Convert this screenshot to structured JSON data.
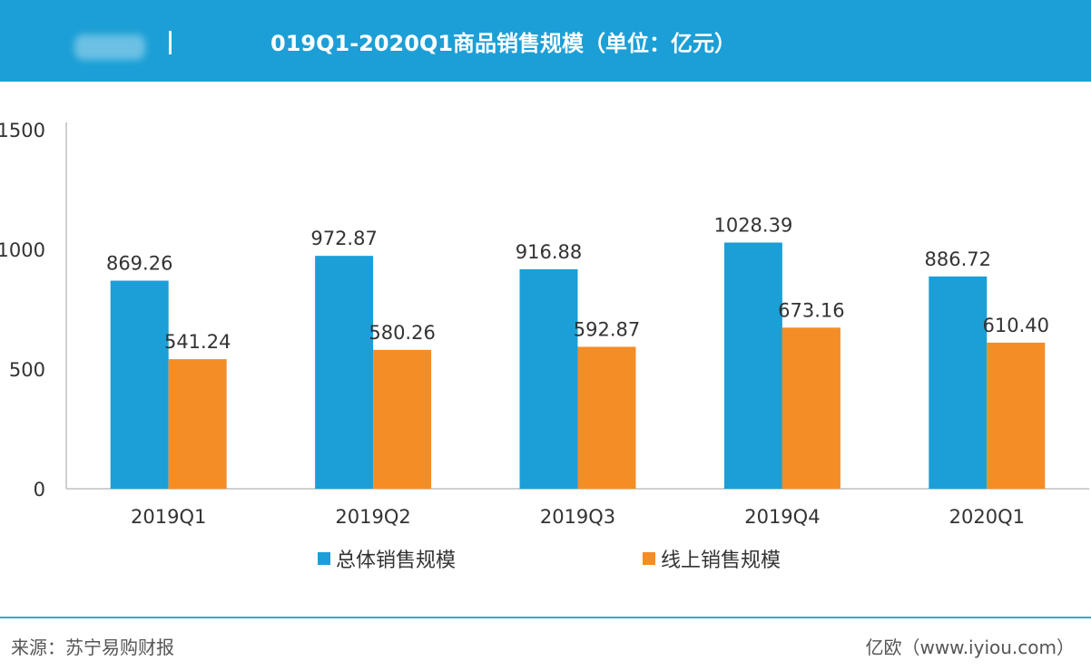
{
  "header": {
    "title": "019Q1-2020Q1商品销售规模（单位：亿元）",
    "bg_color": "#1c9fd6"
  },
  "footer": {
    "source": "来源：苏宁易购财报",
    "brand": "亿欧（www.iyiou.com）"
  },
  "chart_data": {
    "type": "bar",
    "categories": [
      "2019Q1",
      "2019Q2",
      "2019Q3",
      "2019Q4",
      "2020Q1"
    ],
    "series": [
      {
        "name": "总体销售规模",
        "color": "#1c9fd6",
        "values": [
          869.26,
          972.87,
          916.88,
          1028.39,
          886.72
        ],
        "labels": [
          "869.26",
          "972.87",
          "916.88",
          "1028.39",
          "886.72"
        ]
      },
      {
        "name": "线上销售规模",
        "color": "#f48d26",
        "values": [
          541.24,
          580.26,
          592.87,
          673.16,
          610.4
        ],
        "labels": [
          "541.24",
          "580.26",
          "592.87",
          "673.16",
          "610.40"
        ]
      }
    ],
    "yticks": [
      "0",
      "500",
      "1000",
      "1500"
    ],
    "ylim": [
      0,
      1500
    ],
    "grid": false,
    "legend_position": "bottom"
  }
}
